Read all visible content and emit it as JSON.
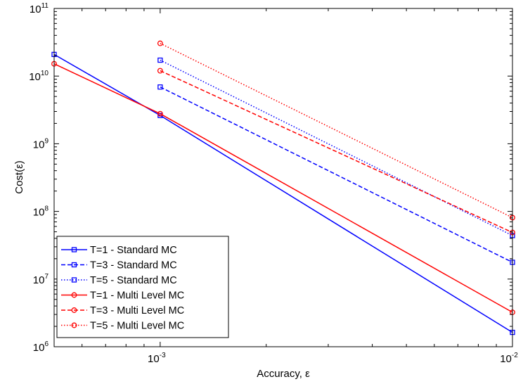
{
  "chart_data": {
    "type": "line",
    "title": "",
    "xlabel": "Accuracy, ε",
    "ylabel": "Cost(ε)",
    "xscale": "log",
    "yscale": "log",
    "xlim": [
      0.0005,
      0.01
    ],
    "ylim": [
      1000000,
      100000000000
    ],
    "grid": false,
    "legend_position": "bottom-left",
    "x_ticks": [
      {
        "value": 0.001,
        "base": "10",
        "exp": "-3"
      },
      {
        "value": 0.01,
        "base": "10",
        "exp": "-2"
      }
    ],
    "y_ticks": [
      {
        "value": 1000000,
        "base": "10",
        "exp": "6"
      },
      {
        "value": 10000000,
        "base": "10",
        "exp": "7"
      },
      {
        "value": 100000000,
        "base": "10",
        "exp": "8"
      },
      {
        "value": 1000000000,
        "base": "10",
        "exp": "9"
      },
      {
        "value": 10000000000,
        "base": "10",
        "exp": "10"
      },
      {
        "value": 100000000000,
        "base": "10",
        "exp": "11"
      }
    ],
    "series": [
      {
        "name": "T=1 - Standard MC",
        "color": "#0000ff",
        "dash": "solid",
        "marker": "square",
        "x": [
          0.0005,
          0.001,
          0.01
        ],
        "y": [
          20900000000,
          2620000000,
          1630000
        ]
      },
      {
        "name": "T=3 - Standard MC",
        "color": "#0000ff",
        "dash": "dashed",
        "marker": "square",
        "x": [
          0.001,
          0.01
        ],
        "y": [
          6900000000,
          17700000
        ]
      },
      {
        "name": "T=5 - Standard MC",
        "color": "#0000ff",
        "dash": "dotted",
        "marker": "square",
        "x": [
          0.001,
          0.01
        ],
        "y": [
          17200000000,
          44000000
        ]
      },
      {
        "name": "T=1 - Multi Level MC",
        "color": "#ff0000",
        "dash": "solid",
        "marker": "circle",
        "x": [
          0.0005,
          0.001,
          0.01
        ],
        "y": [
          15200000000,
          2780000000,
          3230000
        ]
      },
      {
        "name": "T=3 - Multi Level MC",
        "color": "#ff0000",
        "dash": "dashed",
        "marker": "circle",
        "x": [
          0.001,
          0.01
        ],
        "y": [
          12000000000,
          48800000
        ]
      },
      {
        "name": "T=5 - Multi Level MC",
        "color": "#ff0000",
        "dash": "dotted",
        "marker": "circle",
        "x": [
          0.001,
          0.01
        ],
        "y": [
          30500000000,
          81000000
        ]
      }
    ]
  }
}
